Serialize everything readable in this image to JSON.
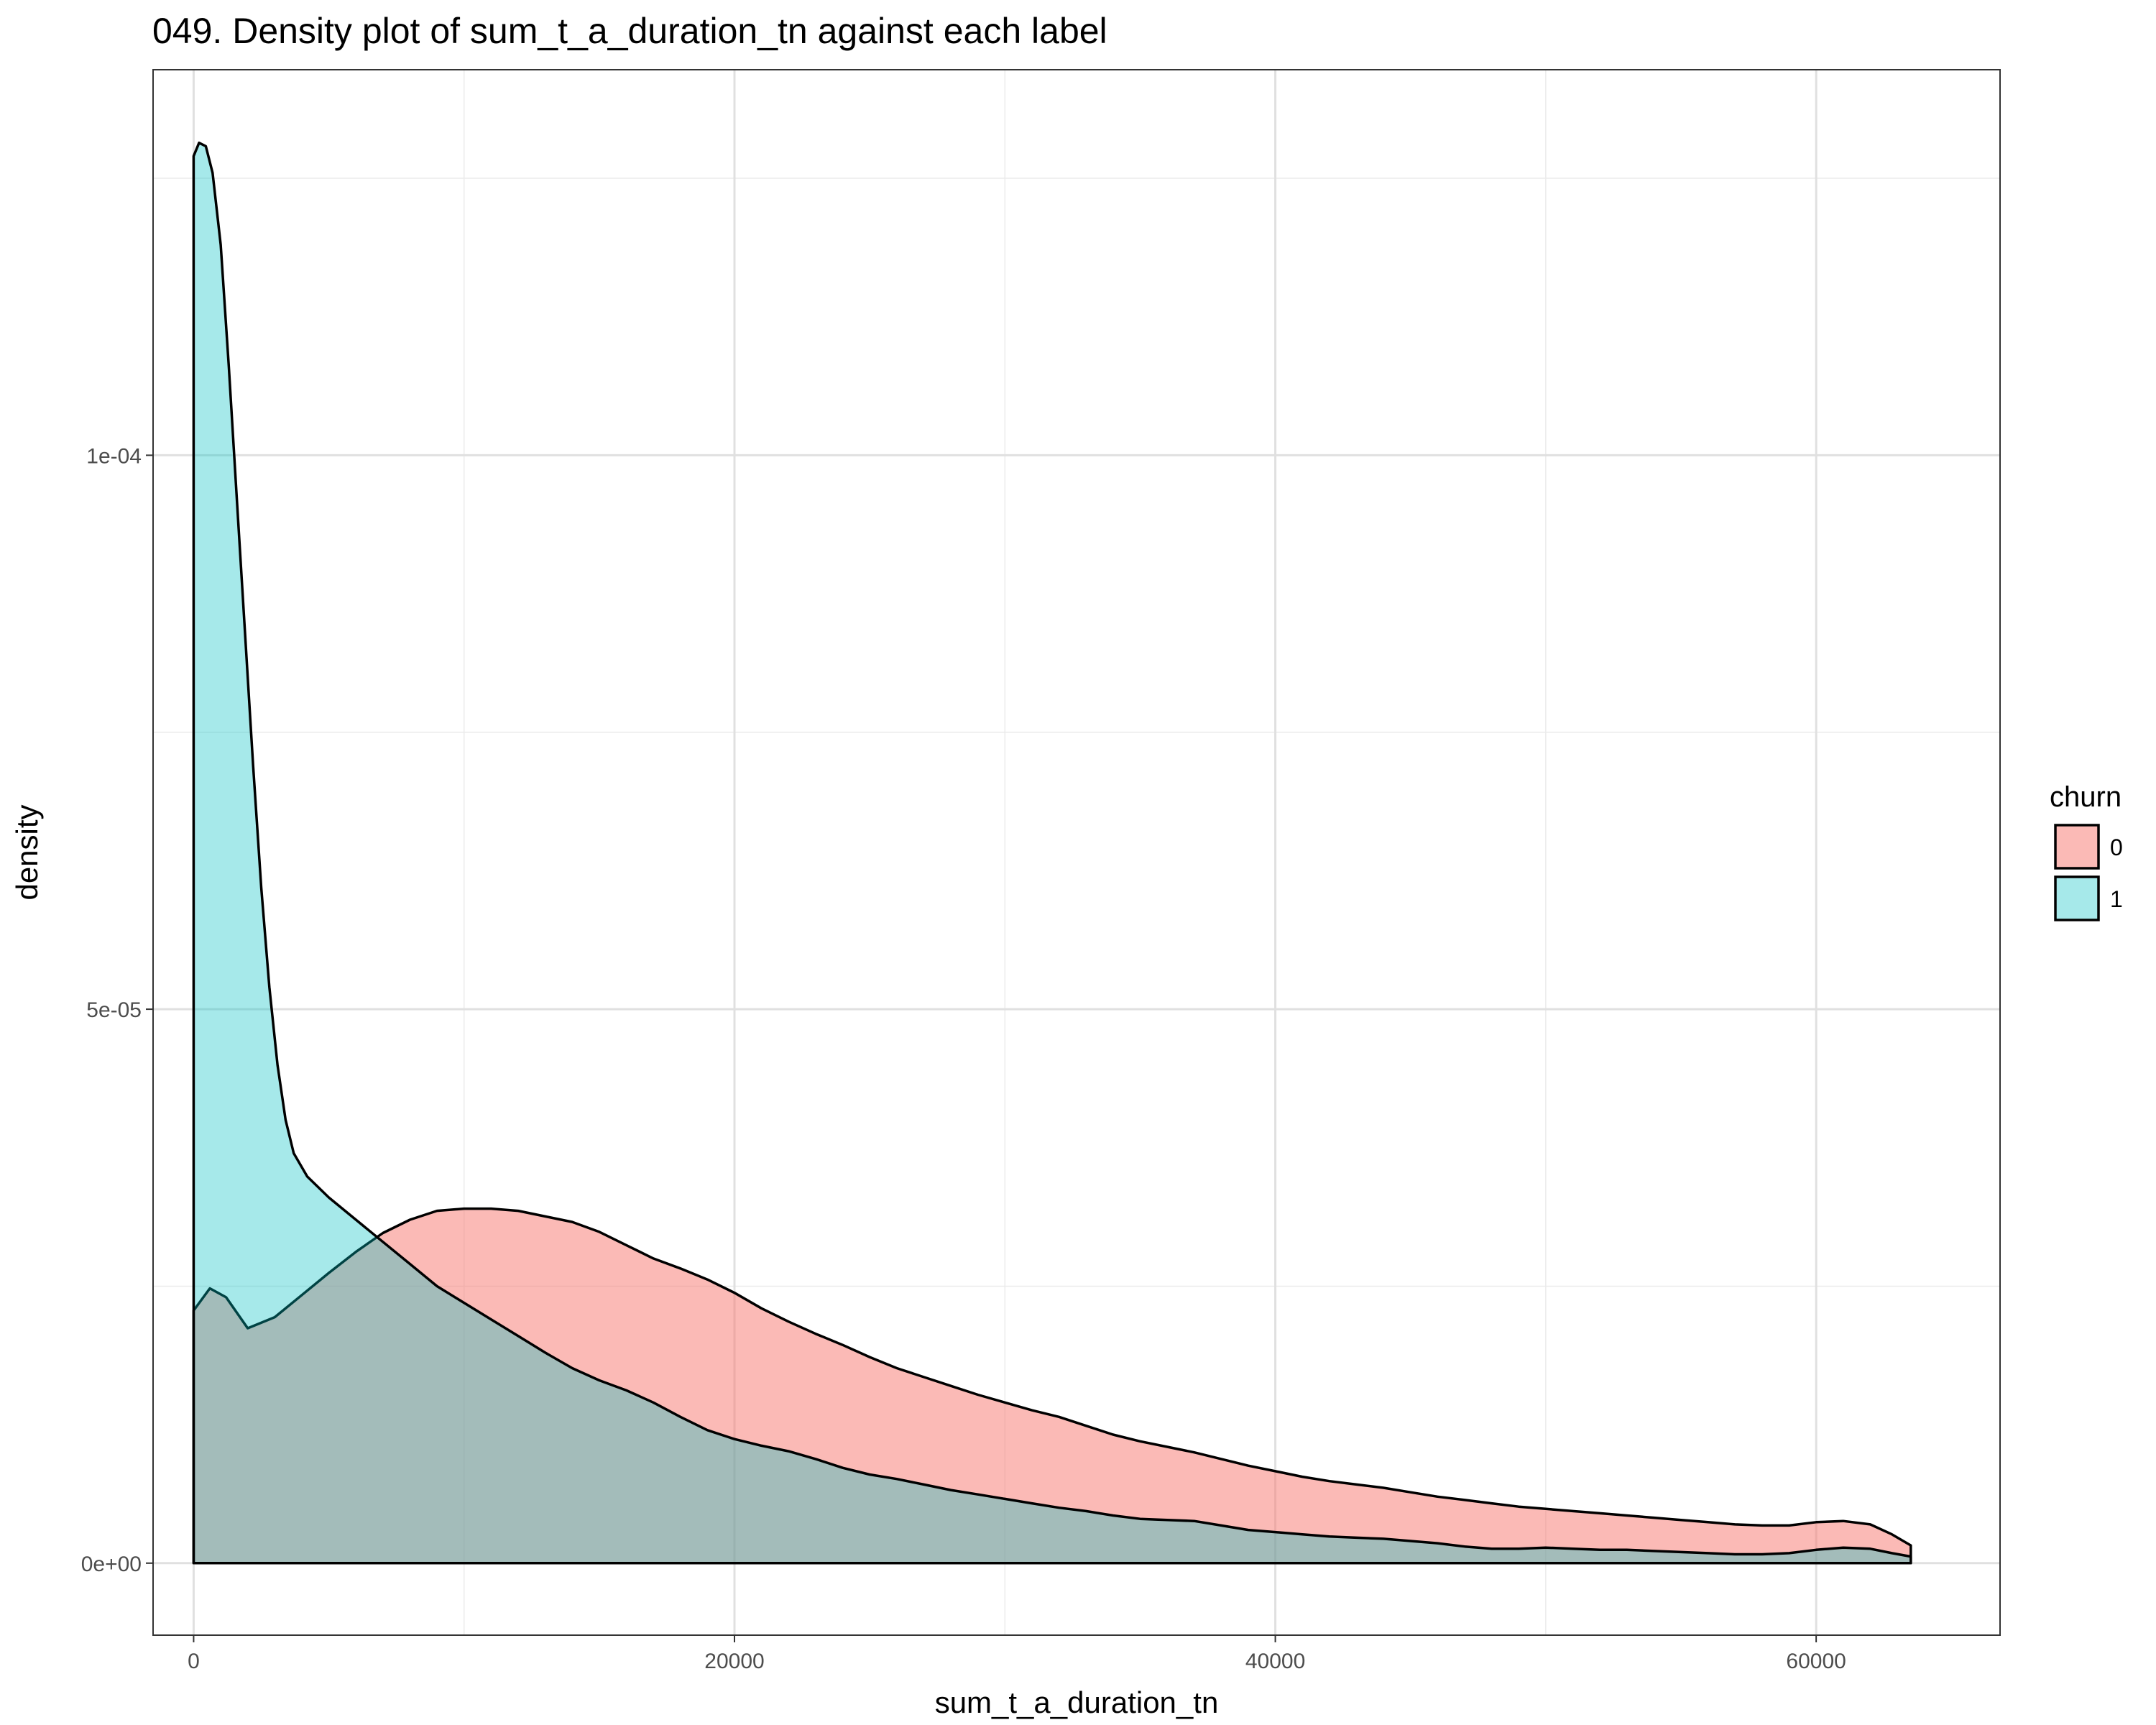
{
  "chart_data": {
    "type": "area",
    "title": "049. Density plot of sum_t_a_duration_tn against each label",
    "xlabel": "sum_t_a_duration_tn",
    "ylabel": "density",
    "xlim": [
      -1500,
      66800
    ],
    "ylim": [
      -6.5e-06,
      0.0001348
    ],
    "x_ticks": [
      0,
      20000,
      40000,
      60000
    ],
    "x_tick_labels": [
      "0",
      "20000",
      "40000",
      "60000"
    ],
    "y_ticks": [
      0,
      5e-05,
      0.0001
    ],
    "y_tick_labels": [
      "0e+00",
      "5e-05",
      "1e-04"
    ],
    "grid": true,
    "legend": {
      "title": "churn",
      "position": "right"
    },
    "series": [
      {
        "name": "0",
        "color": "#F8766D",
        "opacity": 0.5,
        "points": [
          [
            0,
            2.28e-05
          ],
          [
            600,
            2.48e-05
          ],
          [
            1200,
            2.4e-05
          ],
          [
            2000,
            2.12e-05
          ],
          [
            3000,
            2.22e-05
          ],
          [
            4000,
            2.42e-05
          ],
          [
            5000,
            2.62e-05
          ],
          [
            6000,
            2.81e-05
          ],
          [
            7000,
            2.98e-05
          ],
          [
            8000,
            3.1e-05
          ],
          [
            9000,
            3.18e-05
          ],
          [
            10000,
            3.2e-05
          ],
          [
            11000,
            3.2e-05
          ],
          [
            12000,
            3.18e-05
          ],
          [
            13000,
            3.13e-05
          ],
          [
            14000,
            3.08e-05
          ],
          [
            15000,
            2.99e-05
          ],
          [
            16000,
            2.87e-05
          ],
          [
            17000,
            2.75e-05
          ],
          [
            18000,
            2.66e-05
          ],
          [
            19000,
            2.56e-05
          ],
          [
            20000,
            2.44e-05
          ],
          [
            21000,
            2.3e-05
          ],
          [
            22000,
            2.18e-05
          ],
          [
            23000,
            2.07e-05
          ],
          [
            24000,
            1.97e-05
          ],
          [
            25000,
            1.86e-05
          ],
          [
            26000,
            1.76e-05
          ],
          [
            27000,
            1.68e-05
          ],
          [
            28000,
            1.6e-05
          ],
          [
            29000,
            1.52e-05
          ],
          [
            30000,
            1.45e-05
          ],
          [
            31000,
            1.38e-05
          ],
          [
            32000,
            1.32e-05
          ],
          [
            33000,
            1.24e-05
          ],
          [
            34000,
            1.16e-05
          ],
          [
            35000,
            1.1e-05
          ],
          [
            36000,
            1.05e-05
          ],
          [
            37000,
            1e-05
          ],
          [
            38000,
            9.4e-06
          ],
          [
            39000,
            8.8e-06
          ],
          [
            40000,
            8.3e-06
          ],
          [
            41000,
            7.8e-06
          ],
          [
            42000,
            7.4e-06
          ],
          [
            43000,
            7.1e-06
          ],
          [
            44000,
            6.8e-06
          ],
          [
            45000,
            6.4e-06
          ],
          [
            46000,
            6e-06
          ],
          [
            47000,
            5.7e-06
          ],
          [
            48000,
            5.4e-06
          ],
          [
            49000,
            5.1e-06
          ],
          [
            50000,
            4.9e-06
          ],
          [
            51000,
            4.7e-06
          ],
          [
            52000,
            4.5e-06
          ],
          [
            53000,
            4.3e-06
          ],
          [
            54000,
            4.1e-06
          ],
          [
            55000,
            3.9e-06
          ],
          [
            56000,
            3.7e-06
          ],
          [
            57000,
            3.5e-06
          ],
          [
            58000,
            3.4e-06
          ],
          [
            59000,
            3.4e-06
          ],
          [
            60000,
            3.7e-06
          ],
          [
            61000,
            3.8e-06
          ],
          [
            62000,
            3.5e-06
          ],
          [
            62800,
            2.6e-06
          ],
          [
            63500,
            1.6e-06
          ]
        ]
      },
      {
        "name": "1",
        "color": "#00BFC4",
        "opacity": 0.35,
        "points": [
          [
            0,
            0.000127
          ],
          [
            200,
            0.0001282
          ],
          [
            450,
            0.0001279
          ],
          [
            700,
            0.0001255
          ],
          [
            1000,
            0.000119
          ],
          [
            1300,
            0.000108
          ],
          [
            1600,
            9.6e-05
          ],
          [
            1900,
            8.4e-05
          ],
          [
            2200,
            7.2e-05
          ],
          [
            2500,
            6.1e-05
          ],
          [
            2800,
            5.2e-05
          ],
          [
            3100,
            4.5e-05
          ],
          [
            3400,
            4e-05
          ],
          [
            3700,
            3.7e-05
          ],
          [
            4200,
            3.49e-05
          ],
          [
            5000,
            3.3e-05
          ],
          [
            6000,
            3.1e-05
          ],
          [
            7000,
            2.9e-05
          ],
          [
            8000,
            2.7e-05
          ],
          [
            9000,
            2.5e-05
          ],
          [
            10000,
            2.35e-05
          ],
          [
            11000,
            2.2e-05
          ],
          [
            12000,
            2.05e-05
          ],
          [
            13000,
            1.9e-05
          ],
          [
            14000,
            1.76e-05
          ],
          [
            15000,
            1.65e-05
          ],
          [
            16000,
            1.56e-05
          ],
          [
            17000,
            1.45e-05
          ],
          [
            18000,
            1.32e-05
          ],
          [
            19000,
            1.2e-05
          ],
          [
            20000,
            1.12e-05
          ],
          [
            21000,
            1.06e-05
          ],
          [
            22000,
            1.01e-05
          ],
          [
            23000,
            9.4e-06
          ],
          [
            24000,
            8.6e-06
          ],
          [
            25000,
            8e-06
          ],
          [
            26000,
            7.6e-06
          ],
          [
            27000,
            7.1e-06
          ],
          [
            28000,
            6.6e-06
          ],
          [
            29000,
            6.2e-06
          ],
          [
            30000,
            5.8e-06
          ],
          [
            31000,
            5.4e-06
          ],
          [
            32000,
            5e-06
          ],
          [
            33000,
            4.7e-06
          ],
          [
            34000,
            4.3e-06
          ],
          [
            35000,
            4e-06
          ],
          [
            36000,
            3.9e-06
          ],
          [
            37000,
            3.8e-06
          ],
          [
            38000,
            3.4e-06
          ],
          [
            39000,
            3e-06
          ],
          [
            40000,
            2.8e-06
          ],
          [
            41000,
            2.6e-06
          ],
          [
            42000,
            2.4e-06
          ],
          [
            43000,
            2.3e-06
          ],
          [
            44000,
            2.2e-06
          ],
          [
            45000,
            2e-06
          ],
          [
            46000,
            1.8e-06
          ],
          [
            47000,
            1.5e-06
          ],
          [
            48000,
            1.3e-06
          ],
          [
            49000,
            1.3e-06
          ],
          [
            50000,
            1.4e-06
          ],
          [
            51000,
            1.3e-06
          ],
          [
            52000,
            1.2e-06
          ],
          [
            53000,
            1.2e-06
          ],
          [
            54000,
            1.1e-06
          ],
          [
            55000,
            1e-06
          ],
          [
            56000,
            9e-07
          ],
          [
            57000,
            8e-07
          ],
          [
            58000,
            8e-07
          ],
          [
            59000,
            9e-07
          ],
          [
            60000,
            1.2e-06
          ],
          [
            61000,
            1.4e-06
          ],
          [
            62000,
            1.3e-06
          ],
          [
            62800,
            9e-07
          ],
          [
            63500,
            6e-07
          ]
        ]
      }
    ]
  }
}
